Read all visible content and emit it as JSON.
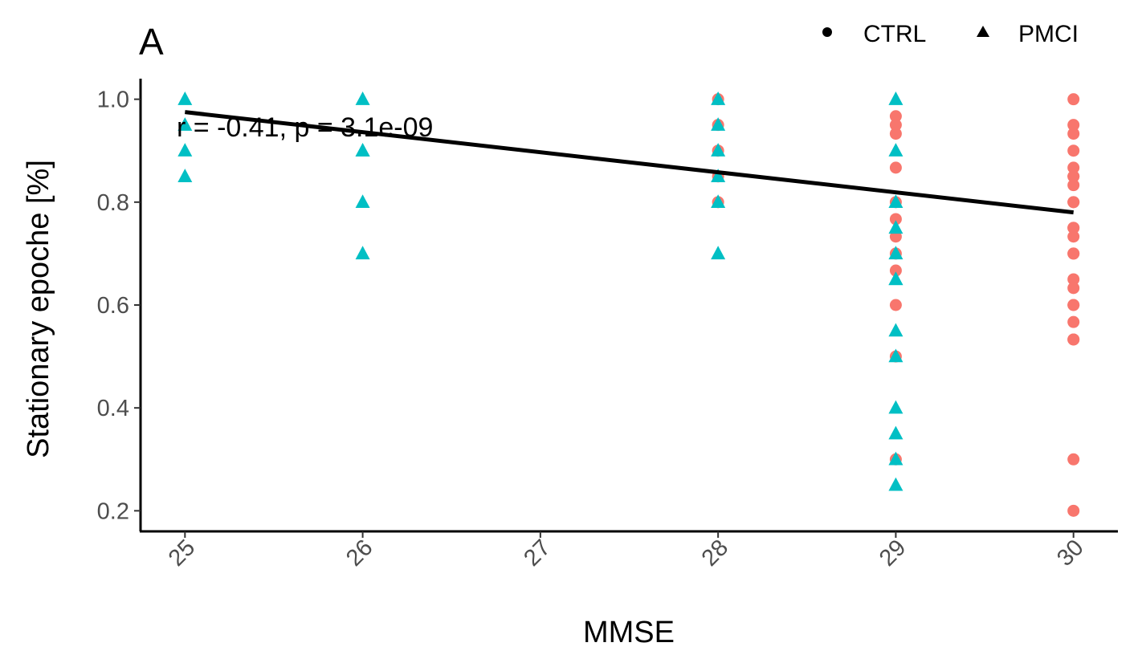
{
  "panel_label": "A",
  "legend": {
    "items": [
      {
        "label": "CTRL",
        "shape": "circle"
      },
      {
        "label": "PMCI",
        "shape": "triangle"
      }
    ]
  },
  "colors": {
    "CTRL": "#F8766D",
    "PMCI": "#00BFC4",
    "fit": "#000000"
  },
  "chart_data": {
    "type": "scatter",
    "xlabel": "MMSE",
    "ylabel": "Stationary epoche [%]",
    "xlim": [
      24.75,
      30.25
    ],
    "ylim": [
      0.16,
      1.04
    ],
    "xticks": [
      25,
      26,
      27,
      28,
      29,
      30
    ],
    "yticks": [
      "0.2",
      "0.4",
      "0.6",
      "0.8",
      "1.0"
    ],
    "annotation": "r = -0.41, p = 3.1e-09",
    "fit_line": {
      "x": [
        25,
        30
      ],
      "y": [
        0.975,
        0.78
      ]
    },
    "series": [
      {
        "name": "CTRL",
        "shape": "circle",
        "x": [
          28,
          28,
          28,
          28,
          28,
          29,
          29,
          29,
          29,
          29,
          29,
          29,
          29,
          29,
          29,
          29,
          29,
          30,
          30,
          30,
          30,
          30,
          30,
          30,
          30,
          30,
          30,
          30,
          30,
          30,
          30,
          30,
          30,
          30,
          30,
          30,
          30,
          30,
          30,
          30,
          30
        ],
        "y": [
          1.0,
          0.95,
          0.9,
          0.85,
          0.8,
          0.967,
          0.867,
          0.8,
          0.767,
          0.733,
          0.7,
          0.667,
          0.6,
          0.5,
          0.3,
          0.95,
          0.933,
          1.0,
          0.95,
          0.933,
          0.9,
          0.867,
          0.85,
          0.833,
          0.8,
          0.75,
          0.733,
          0.7,
          0.65,
          0.633,
          0.6,
          0.567,
          0.533,
          0.3,
          0.2,
          0.8,
          0.75,
          0.7,
          0.6,
          0.533,
          0.85
        ]
      },
      {
        "name": "PMCI",
        "shape": "triangle",
        "x": [
          25,
          25,
          25,
          25,
          26,
          26,
          26,
          26,
          26,
          28,
          28,
          28,
          28,
          28,
          28,
          29,
          29,
          29,
          29,
          29,
          29,
          29,
          29,
          29,
          29,
          29,
          29,
          29
        ],
        "y": [
          1.0,
          0.95,
          0.9,
          0.85,
          1.0,
          0.9,
          0.9,
          0.8,
          0.7,
          1.0,
          0.95,
          0.9,
          0.85,
          0.8,
          0.7,
          1.0,
          0.9,
          0.8,
          0.75,
          0.7,
          0.65,
          0.55,
          0.5,
          0.4,
          0.35,
          0.3,
          0.25,
          0.65
        ]
      }
    ]
  }
}
